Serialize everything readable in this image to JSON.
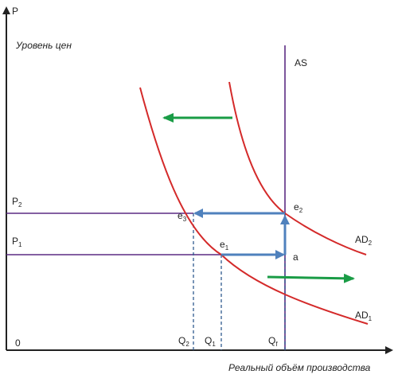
{
  "axes": {
    "y_symbol": "P",
    "y_title": "Уровень цен",
    "x_title": "Реальный объём производства",
    "origin": "0"
  },
  "curves": {
    "as_label": "AS",
    "ad1": {
      "name": "AD",
      "sub": "1"
    },
    "ad2": {
      "name": "AD",
      "sub": "2"
    }
  },
  "price_levels": {
    "p1": {
      "name": "P",
      "sub": "1"
    },
    "p2": {
      "name": "P",
      "sub": "2"
    }
  },
  "quantities": {
    "q2": {
      "name": "Q",
      "sub": "2"
    },
    "q1": {
      "name": "Q",
      "sub": "1"
    },
    "qf": {
      "name": "Q",
      "sub": "f"
    }
  },
  "points": {
    "e1": {
      "name": "e",
      "sub": "1"
    },
    "e2": {
      "name": "e",
      "sub": "2"
    },
    "e3": {
      "name": "e",
      "sub": "3"
    },
    "a": "a"
  },
  "colors": {
    "axis": "#222222",
    "curve_ad": "#d42a2a",
    "line_as": "#5b2c83",
    "price_line": "#5b2c83",
    "arrow_blue": "#4f81bd",
    "arrow_green": "#1a9c46",
    "dashed": "#2f5a8f"
  }
}
